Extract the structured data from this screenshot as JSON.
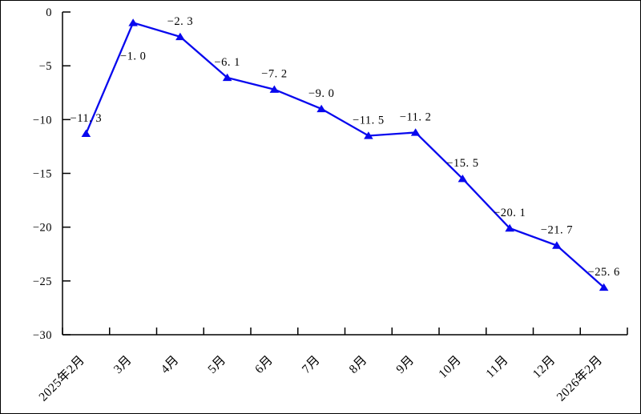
{
  "chart_data": {
    "type": "line",
    "categories": [
      "2025年2月",
      "3月",
      "4月",
      "5月",
      "6月",
      "7月",
      "8月",
      "9月",
      "10月",
      "11月",
      "12月",
      "2026年2月"
    ],
    "values": [
      -11.3,
      -1.0,
      -2.3,
      -6.1,
      -7.2,
      -9.0,
      -11.5,
      -11.2,
      -15.5,
      -20.1,
      -21.7,
      -25.6
    ],
    "point_labels": [
      "−11. 3",
      "−1. 0",
      "−2. 3",
      "−6. 1",
      "−7. 2",
      "−9. 0",
      "−11. 5",
      "−11. 2",
      "−15. 5",
      "−20. 1",
      "−21. 7",
      "−25. 6"
    ],
    "point_label_positions": [
      "above",
      "below",
      "above",
      "above",
      "above",
      "above",
      "above",
      "above",
      "above",
      "above",
      "above",
      "above"
    ],
    "y_ticks": [
      0,
      -5,
      -10,
      -15,
      -20,
      -25,
      -30
    ],
    "y_tick_labels": [
      "0",
      "−5",
      "−10",
      "−15",
      "−20",
      "−25",
      "−30"
    ],
    "ylim": [
      -30,
      0
    ],
    "title": "",
    "xlabel": "",
    "ylabel": "",
    "grid": false,
    "legend": "none",
    "line_color": "#0808EE",
    "marker": "triangle-up",
    "axis_color": "#000000",
    "text_color": "#000000"
  }
}
